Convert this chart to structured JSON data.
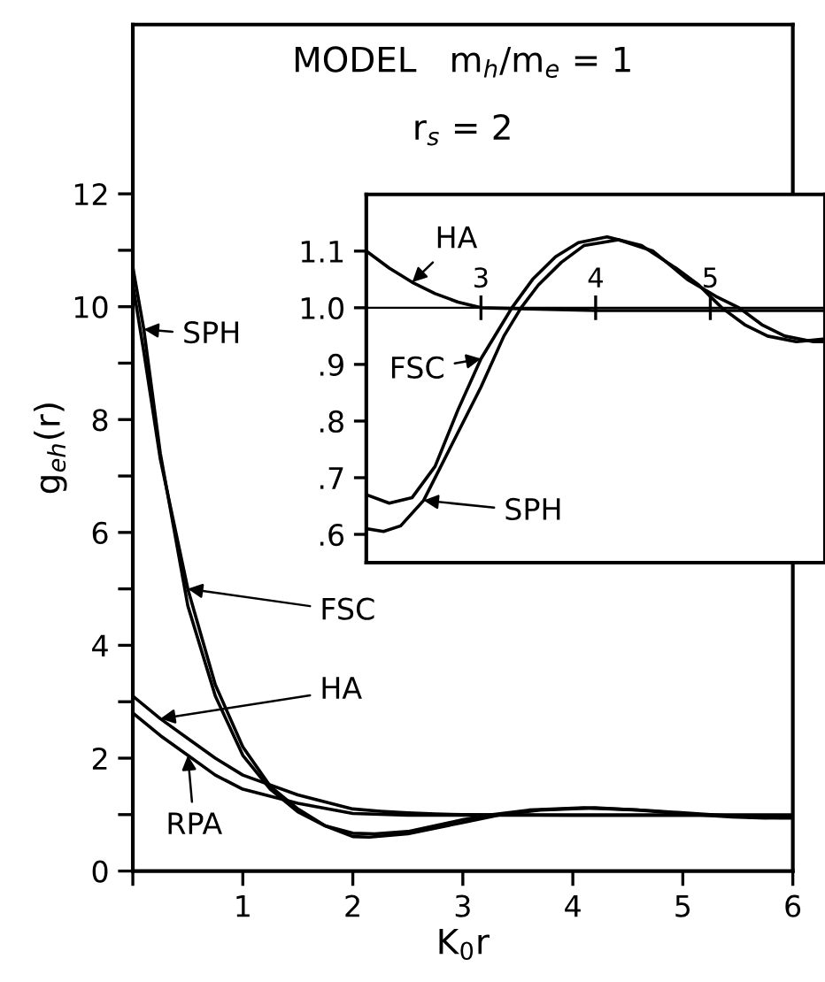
{
  "chart_data": [
    {
      "type": "line",
      "title": "MODEL   m$_{h}$/m$_{e}$ = 1",
      "subtitle": "r$_{s}$ = 2",
      "xlabel": "K$_{0}$r",
      "ylabel": "g$_{eh}$(r)",
      "xlim": [
        0,
        6
      ],
      "ylim": [
        0,
        15
      ],
      "xticks": [
        {
          "value": 0,
          "label": null
        },
        1,
        2,
        3,
        4,
        5,
        6
      ],
      "yticks": [
        0,
        {
          "value": 1,
          "label": null
        },
        2,
        {
          "value": 3,
          "label": null
        },
        4,
        {
          "value": 5,
          "label": null
        },
        6,
        {
          "value": 7,
          "label": null
        },
        8,
        {
          "value": 9,
          "label": null
        },
        10,
        {
          "value": 11,
          "label": null
        },
        12
      ],
      "legend": false,
      "grid": false,
      "marker": "none",
      "line_style": "solid",
      "series": [
        {
          "color": "#000000",
          "x": [
            0,
            0.1,
            0.25,
            0.5,
            0.75,
            1.0,
            1.25,
            1.5,
            1.75,
            2.0,
            2.15,
            2.5,
            3.0,
            3.35,
            3.7,
            4.2,
            4.7,
            5.25,
            5.6,
            5.9,
            6.0
          ],
          "values": [
            10.7,
            9.6,
            7.4,
            4.7,
            3.1,
            2.05,
            1.45,
            1.05,
            0.8,
            0.61,
            0.6,
            0.66,
            0.86,
            1.0,
            1.08,
            1.12,
            1.07,
            1.0,
            0.96,
            0.94,
            0.94
          ]
        },
        {
          "color": "#000000",
          "x": [
            0,
            0.1,
            0.25,
            0.5,
            0.75,
            1.0,
            1.25,
            1.5,
            1.75,
            2.0,
            2.2,
            2.5,
            3.0,
            3.27,
            3.6,
            4.1,
            4.6,
            5.1,
            5.45,
            5.75,
            6.0
          ],
          "values": [
            10.4,
            9.2,
            7.3,
            5.0,
            3.3,
            2.2,
            1.5,
            1.1,
            0.8,
            0.67,
            0.66,
            0.7,
            0.91,
            1.0,
            1.08,
            1.12,
            1.08,
            1.0,
            0.96,
            0.94,
            0.95
          ]
        },
        {
          "color": "#000000",
          "x": [
            0,
            0.25,
            0.5,
            0.75,
            1.0,
            1.5,
            2.0,
            2.25,
            2.5,
            2.75,
            3.0,
            4.0,
            5.0,
            6.0
          ],
          "values": [
            3.1,
            2.7,
            2.35,
            2.0,
            1.7,
            1.35,
            1.1,
            1.06,
            1.03,
            1.01,
            1.0,
            0.99,
            0.99,
            0.99
          ]
        },
        {
          "color": "#000000",
          "x": [
            0,
            0.25,
            0.5,
            0.75,
            1.0,
            1.5,
            2.0,
            2.5,
            3.0,
            4.0,
            5.0,
            6.0
          ],
          "values": [
            2.8,
            2.4,
            2.05,
            1.7,
            1.45,
            1.2,
            1.02,
            0.99,
            0.99,
            0.99,
            0.99,
            0.99
          ]
        }
      ],
      "annotations": [
        {
          "text": "SPH",
          "x": 0.1,
          "y": 9.6
        },
        {
          "text": "FSC",
          "x": 0.5,
          "y": 5.0
        },
        {
          "text": "HA",
          "x": 0.25,
          "y": 2.7
        },
        {
          "text": "RPA",
          "x": 0.5,
          "y": 2.05
        }
      ]
    },
    {
      "type": "line",
      "xlim": [
        2,
        6
      ],
      "ylim": [
        0.55,
        1.2
      ],
      "xticks": [
        3,
        4,
        5
      ],
      "yticks": [
        {
          "value": 0.6,
          "label": ".6"
        },
        {
          "value": 0.7,
          "label": ".7"
        },
        {
          "value": 0.8,
          "label": ".8"
        },
        {
          "value": 0.9,
          "label": ".9"
        },
        {
          "value": 1.0,
          "label": "1.0"
        },
        {
          "value": 1.1,
          "label": "1.1"
        }
      ],
      "legend": false,
      "grid": false,
      "marker": "none",
      "line_style": "solid",
      "series": [
        {
          "color": "#000000",
          "x": [
            2.0,
            2.15,
            2.3,
            2.5,
            2.75,
            3.0,
            3.2,
            3.35,
            3.5,
            3.7,
            3.9,
            4.2,
            4.5,
            4.8,
            5.05,
            5.25,
            5.45,
            5.65,
            5.9,
            6.0
          ],
          "values": [
            0.61,
            0.605,
            0.615,
            0.66,
            0.76,
            0.86,
            0.95,
            1.0,
            1.04,
            1.08,
            1.11,
            1.12,
            1.1,
            1.05,
            1.02,
            1.0,
            0.97,
            0.95,
            0.94,
            0.94
          ]
        },
        {
          "color": "#000000",
          "x": [
            2.0,
            2.2,
            2.4,
            2.6,
            2.8,
            3.0,
            3.15,
            3.27,
            3.45,
            3.65,
            3.85,
            4.1,
            4.4,
            4.7,
            4.9,
            5.1,
            5.3,
            5.5,
            5.75,
            6.0
          ],
          "values": [
            0.67,
            0.655,
            0.665,
            0.72,
            0.82,
            0.91,
            0.96,
            1.0,
            1.05,
            1.09,
            1.115,
            1.125,
            1.11,
            1.07,
            1.04,
            1.0,
            0.97,
            0.95,
            0.94,
            0.945
          ]
        },
        {
          "color": "#000000",
          "x": [
            2.0,
            2.2,
            2.4,
            2.6,
            2.8,
            3.0,
            4.0,
            5.0,
            6.0
          ],
          "values": [
            1.1,
            1.07,
            1.045,
            1.025,
            1.01,
            1.0,
            0.995,
            0.995,
            0.995
          ]
        }
      ],
      "annotations": [
        {
          "text": "HA",
          "x": 2.4,
          "y": 1.045
        },
        {
          "text": "FSC",
          "x": 3.0,
          "y": 0.91
        },
        {
          "text": "SPH",
          "x": 2.5,
          "y": 0.66
        }
      ]
    }
  ]
}
